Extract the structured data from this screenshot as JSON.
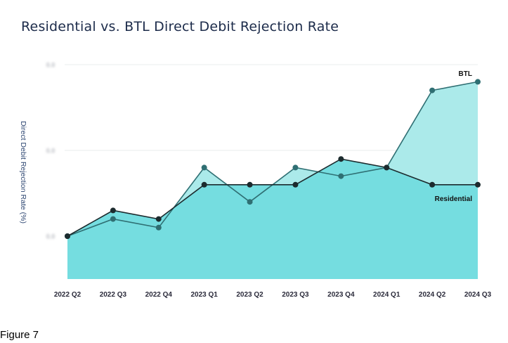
{
  "title": "Residential vs. BTL Direct Debit Rejection Rate",
  "caption": "Figure 7",
  "colors": {
    "btl_line": "#2f6f73",
    "btl_fill": "#abeaea",
    "res_line": "#1c2b2e",
    "res_fill": "#75dde0",
    "grid": "#e9ecee"
  },
  "chart_data": {
    "type": "area",
    "title": "Residential vs. BTL Direct Debit Rejection Rate",
    "xlabel": "",
    "ylabel": "Direct Debit Rejection Rate (%)",
    "ylim": [
      0,
      1.25
    ],
    "yticks": [
      0.25,
      0.75,
      1.25
    ],
    "ytick_labels": [
      "0.0",
      "0.0",
      "0.0"
    ],
    "ytick_labels_obscured": true,
    "categories": [
      "2022 Q2",
      "2022 Q3",
      "2022 Q4",
      "2023 Q1",
      "2023 Q2",
      "2023 Q3",
      "2023 Q4",
      "2024 Q1",
      "2024 Q2",
      "2024 Q3"
    ],
    "series": [
      {
        "name": "BTL",
        "values": [
          0.25,
          0.35,
          0.3,
          0.65,
          0.45,
          0.65,
          0.6,
          0.65,
          1.1,
          1.15
        ]
      },
      {
        "name": "Residential",
        "values": [
          0.25,
          0.4,
          0.35,
          0.55,
          0.55,
          0.55,
          0.7,
          0.65,
          0.55,
          0.55
        ]
      }
    ],
    "grid": true
  }
}
